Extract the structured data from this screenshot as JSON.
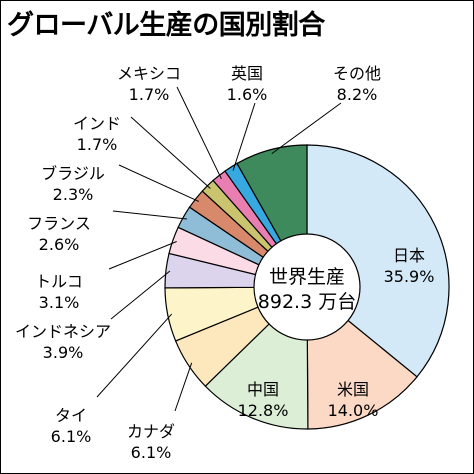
{
  "title": "グローバル生産の国別割合",
  "chart_data": {
    "type": "pie",
    "title": "グローバル生産の国別割合",
    "center_label": [
      "世界生産",
      "892.3 万台"
    ],
    "unit": "%",
    "slices": [
      {
        "name": "日本",
        "value": 35.9,
        "value_label": "35.9%",
        "color": "#d4e9f8"
      },
      {
        "name": "米国",
        "value": 14.0,
        "value_label": "14.0%",
        "color": "#fbd9c4"
      },
      {
        "name": "中国",
        "value": 12.8,
        "value_label": "12.8%",
        "color": "#dcefd6"
      },
      {
        "name": "カナダ",
        "value": 6.1,
        "value_label": "6.1%",
        "color": "#fde7bd"
      },
      {
        "name": "タイ",
        "value": 6.1,
        "value_label": "6.1%",
        "color": "#fdf5c9"
      },
      {
        "name": "インドネシア",
        "value": 3.9,
        "value_label": "3.9%",
        "color": "#dcd3ec"
      },
      {
        "name": "トルコ",
        "value": 3.1,
        "value_label": "3.1%",
        "color": "#fadbe6"
      },
      {
        "name": "フランス",
        "value": 2.6,
        "value_label": "2.6%",
        "color": "#8fbcd6"
      },
      {
        "name": "ブラジル",
        "value": 2.3,
        "value_label": "2.3%",
        "color": "#d9896b"
      },
      {
        "name": "インド",
        "value": 1.7,
        "value_label": "1.7%",
        "color": "#c9c46d"
      },
      {
        "name": "メキシコ",
        "value": 1.7,
        "value_label": "1.7%",
        "color": "#e97fb0"
      },
      {
        "name": "英国",
        "value": 1.6,
        "value_label": "1.6%",
        "color": "#36a9e1"
      },
      {
        "name": "その他",
        "value": 8.2,
        "value_label": "8.2%",
        "color": "#3f8a5d"
      }
    ]
  }
}
